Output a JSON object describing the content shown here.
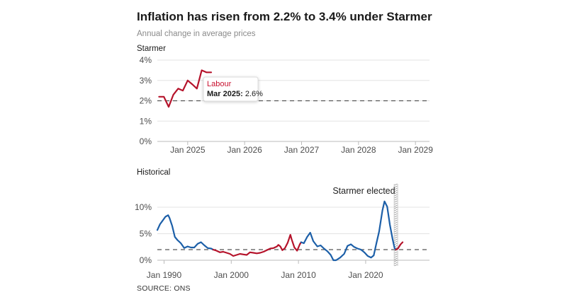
{
  "title": "Inflation has risen from 2.2% to 3.4% under Starmer",
  "subtitle": "Annual change in average prices",
  "source": "SOURCE: ONS",
  "colors": {
    "labour": "#b5132b",
    "conservative": "#1c5fa8",
    "target_line": "#555555",
    "grid": "#e3e3e3",
    "axis": "#bbbbbb"
  },
  "chart_data": [
    {
      "type": "line",
      "panel_label": "Starmer",
      "ylim": [
        0,
        4
      ],
      "y_ticks": [
        0,
        1,
        2,
        3,
        4
      ],
      "y_tick_labels": [
        "0%",
        "1%",
        "2%",
        "3%",
        "4%"
      ],
      "xlim": [
        "2024-06-20",
        "2029-04-01"
      ],
      "x_ticks": [
        "2025-01-01",
        "2026-01-01",
        "2027-01-01",
        "2028-01-01",
        "2029-01-01"
      ],
      "x_tick_labels": [
        "Jan 2025",
        "Jan 2026",
        "Jan 2027",
        "Jan 2028",
        "Jan 2029"
      ],
      "target_line": 2,
      "series": [
        {
          "party": "labour",
          "x": [
            "2024-07-01",
            "2024-08-01",
            "2024-09-01",
            "2024-10-01",
            "2024-11-01",
            "2024-12-01",
            "2025-01-01",
            "2025-02-01",
            "2025-03-01",
            "2025-04-01",
            "2025-05-01",
            "2025-06-01"
          ],
          "y": [
            2.2,
            2.2,
            1.7,
            2.3,
            2.6,
            2.5,
            3.0,
            2.8,
            2.6,
            3.5,
            3.4,
            3.4
          ]
        }
      ],
      "tooltip": {
        "title": "Labour",
        "date": "Mar 2025:",
        "value": "2.6%"
      }
    },
    {
      "type": "line",
      "panel_label": "Historical",
      "ylim": [
        0,
        12
      ],
      "y_ticks": [
        0,
        5,
        10
      ],
      "y_tick_labels": [
        "0%",
        "5%",
        "10%"
      ],
      "xlim": [
        1989,
        2029.5
      ],
      "x_ticks": [
        1990,
        2000,
        2010,
        2020
      ],
      "x_tick_labels": [
        "Jan 1990",
        "Jan 2000",
        "Jan 2010",
        "Jan 2020"
      ],
      "target_line": 2,
      "annotation": {
        "text": "Starmer elected",
        "x": 2024.5
      },
      "series": [
        {
          "party": "conservative",
          "x": [
            1989.0,
            1989.4,
            1989.8,
            1990.2,
            1990.6,
            1990.8,
            1991.2,
            1991.6,
            1992.0,
            1992.5,
            1993.0,
            1993.5,
            1994.0,
            1994.5,
            1995.0,
            1995.5,
            1996.0,
            1996.5,
            1997.0,
            1997.3
          ],
          "y": [
            5.7,
            6.8,
            7.5,
            8.2,
            8.5,
            8.0,
            6.5,
            4.4,
            3.8,
            3.2,
            2.3,
            2.6,
            2.4,
            2.4,
            3.1,
            3.4,
            2.8,
            2.3,
            2.2,
            2.0
          ]
        },
        {
          "party": "labour",
          "x": [
            1997.3,
            1997.8,
            1998.3,
            1998.8,
            1999.3,
            1999.8,
            2000.3,
            2000.8,
            2001.3,
            2001.8,
            2002.3,
            2002.8,
            2003.3,
            2003.8,
            2004.3,
            2004.8,
            2005.3,
            2005.8,
            2006.3,
            2006.8,
            2007.0,
            2007.3,
            2007.6,
            2008.0,
            2008.4,
            2008.8,
            2009.0,
            2009.4,
            2009.8,
            2010.2,
            2010.4
          ],
          "y": [
            2.0,
            1.8,
            1.5,
            1.6,
            1.4,
            1.2,
            0.8,
            1.0,
            1.2,
            1.1,
            1.0,
            1.5,
            1.4,
            1.3,
            1.4,
            1.6,
            1.9,
            2.2,
            2.3,
            2.6,
            2.9,
            2.6,
            1.9,
            2.3,
            3.3,
            4.8,
            3.9,
            2.4,
            1.8,
            3.0,
            3.4
          ]
        },
        {
          "party": "conservative",
          "x": [
            2010.4,
            2010.8,
            2011.3,
            2011.75,
            2012.2,
            2012.8,
            2013.3,
            2013.8,
            2014.3,
            2014.8,
            2015.2,
            2015.6,
            2016.2,
            2016.8,
            2017.3,
            2017.8,
            2018.3,
            2018.8,
            2019.3,
            2019.8,
            2020.3,
            2020.8,
            2021.2,
            2021.6,
            2022.0,
            2022.5,
            2022.8,
            2023.2,
            2023.6,
            2024.0,
            2024.3,
            2024.5
          ],
          "y": [
            3.4,
            3.2,
            4.4,
            5.2,
            3.6,
            2.6,
            2.8,
            2.2,
            1.7,
            1.0,
            0.0,
            0.0,
            0.5,
            1.2,
            2.7,
            3.0,
            2.5,
            2.2,
            2.0,
            1.5,
            0.8,
            0.5,
            0.9,
            3.2,
            5.4,
            9.4,
            11.1,
            10.1,
            6.7,
            4.0,
            2.3,
            2.0
          ]
        },
        {
          "party": "labour",
          "x": [
            2024.5,
            2024.8,
            2025.0,
            2025.2,
            2025.5
          ],
          "y": [
            2.0,
            2.2,
            2.6,
            3.0,
            3.4
          ]
        }
      ]
    }
  ]
}
